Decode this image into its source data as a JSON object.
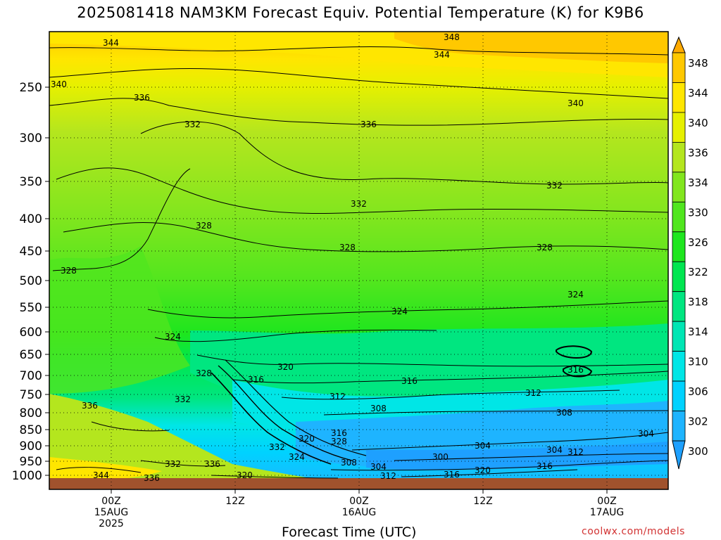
{
  "title": "2025081418 NAM3KM Forecast Equiv. Potential Temperature (K) for K9B6",
  "credit": "coolwx.com/models",
  "chart_data": {
    "type": "heatmap",
    "title": "2025081418 NAM3KM Forecast Equiv. Potential Temperature (K) for K9B6",
    "xlabel": "Forecast Time (UTC)",
    "ylabel": "",
    "y_ticks": [
      250,
      300,
      350,
      400,
      450,
      500,
      550,
      600,
      650,
      700,
      750,
      800,
      850,
      900,
      950,
      1000
    ],
    "x_ticks": [
      {
        "lines": [
          "00Z",
          "15AUG",
          "2025"
        ]
      },
      {
        "lines": [
          "12Z"
        ]
      },
      {
        "lines": [
          "00Z",
          "16AUG"
        ]
      },
      {
        "lines": [
          "12Z"
        ]
      },
      {
        "lines": [
          "00Z",
          "17AUG"
        ]
      }
    ],
    "colorbar": {
      "levels": [
        300,
        302,
        306,
        310,
        314,
        318,
        322,
        326,
        330,
        334,
        336,
        340,
        344,
        348
      ],
      "colors": [
        "#1ea0ff",
        "#1eb4ff",
        "#00d2ff",
        "#00e6e6",
        "#00e6b4",
        "#00e680",
        "#00e650",
        "#1ee61e",
        "#50e61e",
        "#82e61e",
        "#b4e61e",
        "#e6f000",
        "#ffe600",
        "#ffc800",
        "#ffaa00"
      ]
    },
    "contour_labels": [
      "344",
      "348",
      "344",
      "340",
      "336",
      "340",
      "332",
      "336",
      "332",
      "328",
      "332",
      "328",
      "328",
      "328",
      "328",
      "324",
      "324",
      "324",
      "320",
      "316",
      "316",
      "316",
      "312",
      "312",
      "308",
      "308",
      "304",
      "304",
      "300",
      "304",
      "312",
      "316",
      "320",
      "336",
      "332",
      "336",
      "332",
      "344",
      "336",
      "320",
      "324",
      "308",
      "304",
      "312",
      "316",
      "328",
      "320",
      "332",
      "316"
    ],
    "grid": true
  }
}
